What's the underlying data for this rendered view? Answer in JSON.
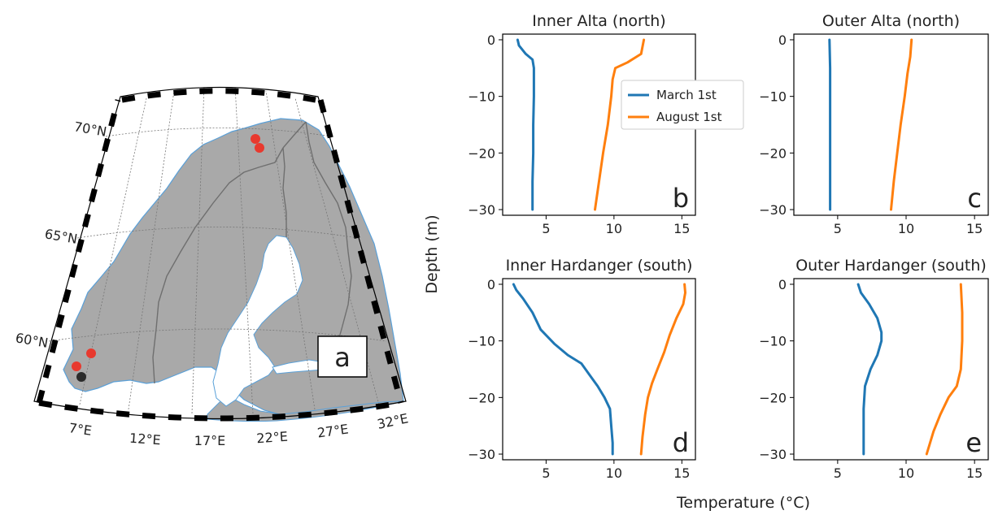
{
  "figure": {
    "shared_ylabel": "Depth (m)",
    "shared_xlabel": "Temperature (°C)"
  },
  "map_panel": {
    "panel_letter": "a",
    "lat_labels": [
      "70°N",
      "65°N",
      "60°N"
    ],
    "lon_labels": [
      "7°E",
      "12°E",
      "17°E",
      "22°E",
      "27°E",
      "32°E"
    ],
    "colors": {
      "land": "#a9a9a9",
      "sea": "#ffffff",
      "coast": "#5aa0d8",
      "border": "#6f6f6f",
      "site_red": "#e8392e",
      "site_black": "#2b2b2b"
    },
    "sites": [
      {
        "name": "Inner Alta",
        "lat": 69.9,
        "lon": 23.3,
        "color": "red"
      },
      {
        "name": "Outer Alta",
        "lat": 70.1,
        "lon": 22.9,
        "color": "red"
      },
      {
        "name": "Inner Hardanger",
        "lat": 60.2,
        "lon": 6.5,
        "color": "red"
      },
      {
        "name": "Outer Hardanger",
        "lat": 59.7,
        "lon": 5.3,
        "color": "red"
      },
      {
        "name": "",
        "lat": 59.2,
        "lon": 5.8,
        "color": "black"
      }
    ]
  },
  "chart_data": [
    {
      "type": "line",
      "panel": "b",
      "title": "Inner Alta (north)",
      "xlim": [
        1.8,
        16
      ],
      "ylim": [
        -31,
        1
      ],
      "xticks": [
        5,
        10,
        15
      ],
      "yticks": [
        0,
        -10,
        -20,
        -30
      ],
      "legend": {
        "position": "top-right",
        "entries": [
          "March 1st",
          "August 1st"
        ]
      },
      "series": [
        {
          "name": "March 1st",
          "color": "#1f77b4",
          "points": [
            [
              2.9,
              0
            ],
            [
              3.0,
              -1
            ],
            [
              3.5,
              -2.5
            ],
            [
              4.0,
              -3.5
            ],
            [
              4.1,
              -5
            ],
            [
              4.1,
              -10
            ],
            [
              4.05,
              -15
            ],
            [
              4.05,
              -20
            ],
            [
              4.0,
              -25
            ],
            [
              4.0,
              -30
            ]
          ]
        },
        {
          "name": "August 1st",
          "color": "#ff7f0e",
          "points": [
            [
              12.2,
              0
            ],
            [
              12.0,
              -2.5
            ],
            [
              11.0,
              -4
            ],
            [
              10.1,
              -5
            ],
            [
              9.9,
              -7
            ],
            [
              9.8,
              -10
            ],
            [
              9.55,
              -15
            ],
            [
              9.2,
              -20
            ],
            [
              8.9,
              -25
            ],
            [
              8.6,
              -30
            ]
          ]
        }
      ]
    },
    {
      "type": "line",
      "panel": "c",
      "title": "Outer Alta (north)",
      "xlim": [
        1.8,
        16
      ],
      "ylim": [
        -31,
        1
      ],
      "xticks": [
        5,
        10,
        15
      ],
      "yticks": [
        0,
        -10,
        -20,
        -30
      ],
      "series": [
        {
          "name": "March 1st",
          "color": "#1f77b4",
          "points": [
            [
              4.4,
              0
            ],
            [
              4.45,
              -5
            ],
            [
              4.45,
              -10
            ],
            [
              4.45,
              -15
            ],
            [
              4.45,
              -20
            ],
            [
              4.45,
              -25
            ],
            [
              4.45,
              -30
            ]
          ]
        },
        {
          "name": "August 1st",
          "color": "#ff7f0e",
          "points": [
            [
              10.4,
              0
            ],
            [
              10.3,
              -3
            ],
            [
              10.1,
              -6
            ],
            [
              9.9,
              -10
            ],
            [
              9.6,
              -15
            ],
            [
              9.35,
              -20
            ],
            [
              9.1,
              -25
            ],
            [
              8.9,
              -30
            ]
          ]
        }
      ]
    },
    {
      "type": "line",
      "panel": "d",
      "title": "Inner Hardanger (south)",
      "xlim": [
        1.8,
        16
      ],
      "ylim": [
        -31,
        1
      ],
      "xticks": [
        5,
        10,
        15
      ],
      "yticks": [
        0,
        -10,
        -20,
        -30
      ],
      "series": [
        {
          "name": "March 1st",
          "color": "#1f77b4",
          "points": [
            [
              2.6,
              0
            ],
            [
              2.8,
              -1
            ],
            [
              3.3,
              -2.5
            ],
            [
              4.0,
              -5
            ],
            [
              4.6,
              -8
            ],
            [
              5.6,
              -10.5
            ],
            [
              6.6,
              -12.5
            ],
            [
              7.6,
              -14
            ],
            [
              8.2,
              -16
            ],
            [
              8.8,
              -18
            ],
            [
              9.3,
              -20
            ],
            [
              9.7,
              -22
            ],
            [
              9.8,
              -25
            ],
            [
              9.9,
              -28
            ],
            [
              9.9,
              -30
            ]
          ]
        },
        {
          "name": "August 1st",
          "color": "#ff7f0e",
          "points": [
            [
              15.2,
              0
            ],
            [
              15.25,
              -1.5
            ],
            [
              15.1,
              -3.5
            ],
            [
              14.6,
              -6
            ],
            [
              14.1,
              -9
            ],
            [
              13.7,
              -12
            ],
            [
              13.2,
              -15
            ],
            [
              12.8,
              -17.5
            ],
            [
              12.5,
              -20
            ],
            [
              12.3,
              -23
            ],
            [
              12.1,
              -27
            ],
            [
              12.0,
              -30
            ]
          ]
        }
      ]
    },
    {
      "type": "line",
      "panel": "e",
      "title": "Outer Hardanger (south)",
      "xlim": [
        1.8,
        16
      ],
      "ylim": [
        -31,
        1
      ],
      "xticks": [
        5,
        10,
        15
      ],
      "yticks": [
        0,
        -10,
        -20,
        -30
      ],
      "series": [
        {
          "name": "March 1st",
          "color": "#1f77b4",
          "points": [
            [
              6.5,
              0
            ],
            [
              6.7,
              -1.5
            ],
            [
              7.3,
              -3.5
            ],
            [
              7.9,
              -6
            ],
            [
              8.2,
              -8.5
            ],
            [
              8.2,
              -10
            ],
            [
              7.9,
              -12.5
            ],
            [
              7.4,
              -15
            ],
            [
              7.0,
              -18
            ],
            [
              6.9,
              -22
            ],
            [
              6.9,
              -26
            ],
            [
              6.9,
              -30
            ]
          ]
        },
        {
          "name": "August 1st",
          "color": "#ff7f0e",
          "points": [
            [
              14.0,
              0
            ],
            [
              14.1,
              -5
            ],
            [
              14.1,
              -10
            ],
            [
              14.0,
              -15
            ],
            [
              13.7,
              -18
            ],
            [
              13.1,
              -20
            ],
            [
              12.5,
              -23
            ],
            [
              12.0,
              -26
            ],
            [
              11.5,
              -30
            ]
          ]
        }
      ]
    }
  ]
}
